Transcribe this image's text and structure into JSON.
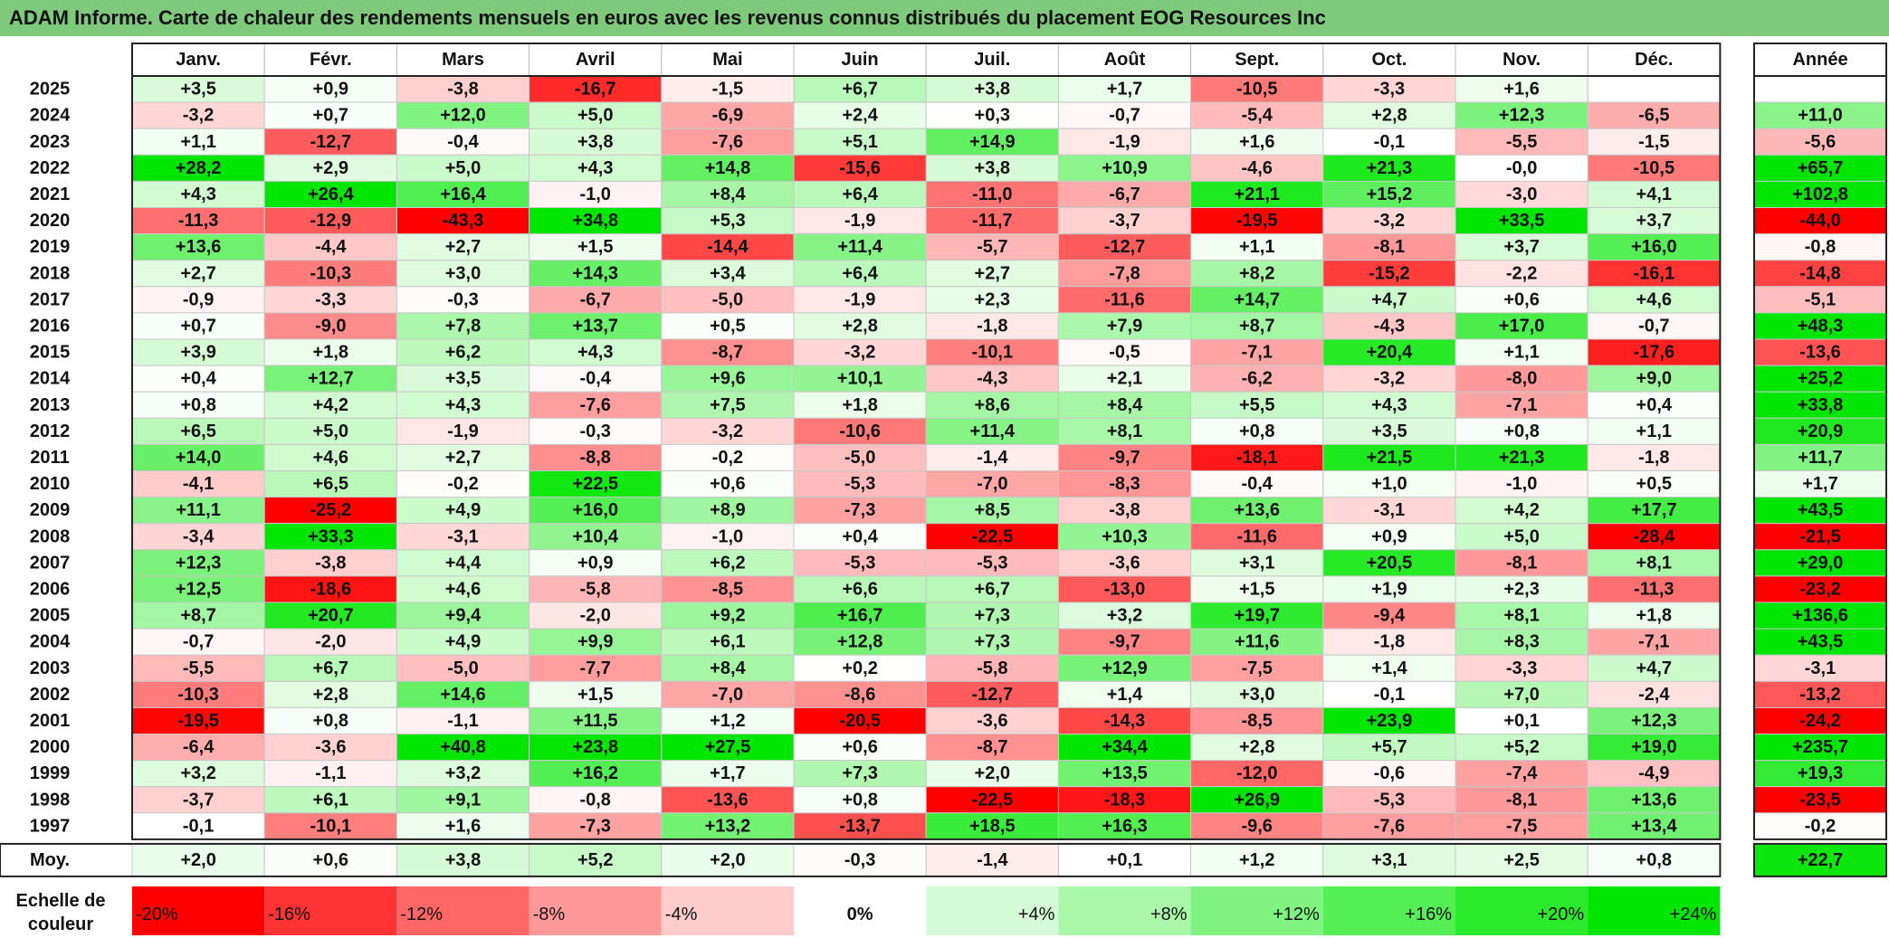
{
  "chart_data": {
    "type": "heatmap",
    "title": "ADAM Informe. Carte de chaleur des rendements mensuels en euros avec les revenus connus distribués du placement EOG Resources Inc",
    "columns": [
      "Janv.",
      "Févr.",
      "Mars",
      "Avril",
      "Mai",
      "Juin",
      "Juil.",
      "Août",
      "Sept.",
      "Oct.",
      "Nov.",
      "Déc."
    ],
    "annual_header": "Année",
    "rows": [
      {
        "year": "2025",
        "values": [
          "+3,5",
          "+0,9",
          "-3,8",
          "-16,7",
          "-1,5",
          "+6,7",
          "+3,8",
          "+1,7",
          "-10,5",
          "-3,3",
          "+1,6",
          ""
        ],
        "annual": ""
      },
      {
        "year": "2024",
        "values": [
          "-3,2",
          "+0,7",
          "+12,0",
          "+5,0",
          "-6,9",
          "+2,4",
          "+0,3",
          "-0,7",
          "-5,4",
          "+2,8",
          "+12,3",
          "-6,5"
        ],
        "annual": "+11,0"
      },
      {
        "year": "2023",
        "values": [
          "+1,1",
          "-12,7",
          "-0,4",
          "+3,8",
          "-7,6",
          "+5,1",
          "+14,9",
          "-1,9",
          "+1,6",
          "-0,1",
          "-5,5",
          "-1,5"
        ],
        "annual": "-5,6"
      },
      {
        "year": "2022",
        "values": [
          "+28,2",
          "+2,9",
          "+5,0",
          "+4,3",
          "+14,8",
          "-15,6",
          "+3,8",
          "+10,9",
          "-4,6",
          "+21,3",
          "-0,0",
          "-10,5"
        ],
        "annual": "+65,7"
      },
      {
        "year": "2021",
        "values": [
          "+4,3",
          "+26,4",
          "+16,4",
          "-1,0",
          "+8,4",
          "+6,4",
          "-11,0",
          "-6,7",
          "+21,1",
          "+15,2",
          "-3,0",
          "+4,1"
        ],
        "annual": "+102,8"
      },
      {
        "year": "2020",
        "values": [
          "-11,3",
          "-12,9",
          "-43,3",
          "+34,8",
          "+5,3",
          "-1,9",
          "-11,7",
          "-3,7",
          "-19,5",
          "-3,2",
          "+33,5",
          "+3,7"
        ],
        "annual": "-44,0"
      },
      {
        "year": "2019",
        "values": [
          "+13,6",
          "-4,4",
          "+2,7",
          "+1,5",
          "-14,4",
          "+11,4",
          "-5,7",
          "-12,7",
          "+1,1",
          "-8,1",
          "+3,7",
          "+16,0"
        ],
        "annual": "-0,8"
      },
      {
        "year": "2018",
        "values": [
          "+2,7",
          "-10,3",
          "+3,0",
          "+14,3",
          "+3,4",
          "+6,4",
          "+2,7",
          "-7,8",
          "+8,2",
          "-15,2",
          "-2,2",
          "-16,1"
        ],
        "annual": "-14,8"
      },
      {
        "year": "2017",
        "values": [
          "-0,9",
          "-3,3",
          "-0,3",
          "-6,7",
          "-5,0",
          "-1,9",
          "+2,3",
          "-11,6",
          "+14,7",
          "+4,7",
          "+0,6",
          "+4,6"
        ],
        "annual": "-5,1"
      },
      {
        "year": "2016",
        "values": [
          "+0,7",
          "-9,0",
          "+7,8",
          "+13,7",
          "+0,5",
          "+2,8",
          "-1,8",
          "+7,9",
          "+8,7",
          "-4,3",
          "+17,0",
          "-0,7"
        ],
        "annual": "+48,3"
      },
      {
        "year": "2015",
        "values": [
          "+3,9",
          "+1,8",
          "+6,2",
          "+4,3",
          "-8,7",
          "-3,2",
          "-10,1",
          "-0,5",
          "-7,1",
          "+20,4",
          "+1,1",
          "-17,6"
        ],
        "annual": "-13,6"
      },
      {
        "year": "2014",
        "values": [
          "+0,4",
          "+12,7",
          "+3,5",
          "-0,4",
          "+9,6",
          "+10,1",
          "-4,3",
          "+2,1",
          "-6,2",
          "-3,2",
          "-8,0",
          "+9,0"
        ],
        "annual": "+25,2"
      },
      {
        "year": "2013",
        "values": [
          "+0,8",
          "+4,2",
          "+4,3",
          "-7,6",
          "+7,5",
          "+1,8",
          "+8,6",
          "+8,4",
          "+5,5",
          "+4,3",
          "-7,1",
          "+0,4"
        ],
        "annual": "+33,8"
      },
      {
        "year": "2012",
        "values": [
          "+6,5",
          "+5,0",
          "-1,9",
          "-0,3",
          "-3,2",
          "-10,6",
          "+11,4",
          "+8,1",
          "+0,8",
          "+3,5",
          "+0,8",
          "+1,1"
        ],
        "annual": "+20,9"
      },
      {
        "year": "2011",
        "values": [
          "+14,0",
          "+4,6",
          "+2,7",
          "-8,8",
          "-0,2",
          "-5,0",
          "-1,4",
          "-9,7",
          "-18,1",
          "+21,5",
          "+21,3",
          "-1,8"
        ],
        "annual": "+11,7"
      },
      {
        "year": "2010",
        "values": [
          "-4,1",
          "+6,5",
          "-0,2",
          "+22,5",
          "+0,6",
          "-5,3",
          "-7,0",
          "-8,3",
          "-0,4",
          "+1,0",
          "-1,0",
          "+0,5"
        ],
        "annual": "+1,7"
      },
      {
        "year": "2009",
        "values": [
          "+11,1",
          "-25,2",
          "+4,9",
          "+16,0",
          "+8,9",
          "-7,3",
          "+8,5",
          "-3,8",
          "+13,6",
          "-3,1",
          "+4,2",
          "+17,7"
        ],
        "annual": "+43,5"
      },
      {
        "year": "2008",
        "values": [
          "-3,4",
          "+33,3",
          "-3,1",
          "+10,4",
          "-1,0",
          "+0,4",
          "-22,5",
          "+10,3",
          "-11,6",
          "+0,9",
          "+5,0",
          "-28,4"
        ],
        "annual": "-21,5"
      },
      {
        "year": "2007",
        "values": [
          "+12,3",
          "-3,8",
          "+4,4",
          "+0,9",
          "+6,2",
          "-5,3",
          "-5,3",
          "-3,6",
          "+3,1",
          "+20,5",
          "-8,1",
          "+8,1"
        ],
        "annual": "+29,0"
      },
      {
        "year": "2006",
        "values": [
          "+12,5",
          "-18,6",
          "+4,6",
          "-5,8",
          "-8,5",
          "+6,6",
          "+6,7",
          "-13,0",
          "+1,5",
          "+1,9",
          "+2,3",
          "-11,3"
        ],
        "annual": "-23,2"
      },
      {
        "year": "2005",
        "values": [
          "+8,7",
          "+20,7",
          "+9,4",
          "-2,0",
          "+9,2",
          "+16,7",
          "+7,3",
          "+3,2",
          "+19,7",
          "-9,4",
          "+8,1",
          "+1,8"
        ],
        "annual": "+136,6"
      },
      {
        "year": "2004",
        "values": [
          "-0,7",
          "-2,0",
          "+4,9",
          "+9,9",
          "+6,1",
          "+12,8",
          "+7,3",
          "-9,7",
          "+11,6",
          "-1,8",
          "+8,3",
          "-7,1"
        ],
        "annual": "+43,5"
      },
      {
        "year": "2003",
        "values": [
          "-5,5",
          "+6,7",
          "-5,0",
          "-7,7",
          "+8,4",
          "+0,2",
          "-5,8",
          "+12,9",
          "-7,5",
          "+1,4",
          "-3,3",
          "+4,7"
        ],
        "annual": "-3,1"
      },
      {
        "year": "2002",
        "values": [
          "-10,3",
          "+2,8",
          "+14,6",
          "+1,5",
          "-7,0",
          "-8,6",
          "-12,7",
          "+1,4",
          "+3,0",
          "-0,1",
          "+7,0",
          "-2,4"
        ],
        "annual": "-13,2"
      },
      {
        "year": "2001",
        "values": [
          "-19,5",
          "+0,8",
          "-1,1",
          "+11,5",
          "+1,2",
          "-20,5",
          "-3,6",
          "-14,3",
          "-8,5",
          "+23,9",
          "+0,1",
          "+12,3"
        ],
        "annual": "-24,2"
      },
      {
        "year": "2000",
        "values": [
          "-6,4",
          "-3,6",
          "+40,8",
          "+23,8",
          "+27,5",
          "+0,6",
          "-8,7",
          "+34,4",
          "+2,8",
          "+5,7",
          "+5,2",
          "+19,0"
        ],
        "annual": "+235,7"
      },
      {
        "year": "1999",
        "values": [
          "+3,2",
          "-1,1",
          "+3,2",
          "+16,2",
          "+1,7",
          "+7,3",
          "+2,0",
          "+13,5",
          "-12,0",
          "-0,6",
          "-7,4",
          "-4,9"
        ],
        "annual": "+19,3"
      },
      {
        "year": "1998",
        "values": [
          "-3,7",
          "+6,1",
          "+9,1",
          "-0,8",
          "-13,6",
          "+0,8",
          "-22,5",
          "-18,3",
          "+26,9",
          "-5,3",
          "-8,1",
          "+13,6"
        ],
        "annual": "-23,5"
      },
      {
        "year": "1997",
        "values": [
          "-0,1",
          "-10,1",
          "+1,6",
          "-7,3",
          "+13,2",
          "-13,7",
          "+18,5",
          "+16,3",
          "-9,6",
          "-7,6",
          "-7,5",
          "+13,4"
        ],
        "annual": "-0,2"
      }
    ],
    "average": {
      "label": "Moy.",
      "values": [
        "+2,0",
        "+0,6",
        "+3,8",
        "+5,2",
        "+2,0",
        "-0,3",
        "-1,4",
        "+0,1",
        "+1,2",
        "+3,1",
        "+2,5",
        "+0,8"
      ],
      "annual": "+22,7"
    },
    "scale": {
      "label_line1": "Echelle de",
      "label_line2": "couleur",
      "stops": [
        {
          "label": "-20%",
          "value": -20
        },
        {
          "label": "-16%",
          "value": -16
        },
        {
          "label": "-12%",
          "value": -12
        },
        {
          "label": "-8%",
          "value": -8
        },
        {
          "label": "-4%",
          "value": -4
        },
        {
          "label": "0%",
          "value": 0
        },
        {
          "label": "+4%",
          "value": 4
        },
        {
          "label": "+8%",
          "value": 8
        },
        {
          "label": "+12%",
          "value": 12
        },
        {
          "label": "+16%",
          "value": 16
        },
        {
          "label": "+20%",
          "value": 20
        },
        {
          "label": "+24%",
          "value": 24
        }
      ]
    },
    "colors": {
      "title_bg": "#7ec97c",
      "negative_max": "#ff0000",
      "neutral": "#ffffff",
      "positive_max": "#00e600",
      "negative_limit": -20,
      "positive_limit": 24
    }
  }
}
